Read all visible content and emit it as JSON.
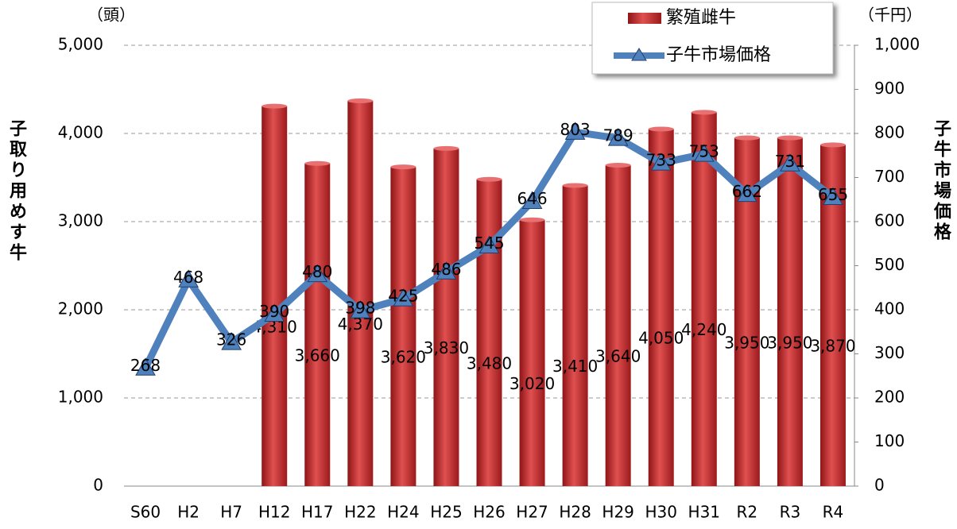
{
  "chart_data": {
    "type": "bar_line",
    "y_unit": "（頭）",
    "y2_unit": "（千円）",
    "ylabel": "子取り用めす牛",
    "y2label": "子牛市場価格",
    "categories": [
      "S60",
      "H2",
      "H7",
      "H12",
      "H17",
      "H22",
      "H24",
      "H25",
      "H26",
      "H27",
      "H28",
      "H29",
      "H30",
      "H31",
      "R2",
      "R3",
      "R4"
    ],
    "series": [
      {
        "name": "繁殖雌牛",
        "type": "bar",
        "color": "#c0282a",
        "values": [
          null,
          null,
          null,
          4310,
          3660,
          4370,
          3620,
          3830,
          3480,
          3020,
          3410,
          3640,
          4050,
          4240,
          3950,
          3950,
          3870
        ],
        "value_labels": [
          null,
          null,
          null,
          "4,310",
          "3,660",
          "4,370",
          "3,620",
          "3,830",
          "3,480",
          "3,020",
          "3,410",
          "3,640",
          "4,050",
          "4,240",
          "3,950",
          "3,950",
          "3,870"
        ]
      },
      {
        "name": "子牛市場価格",
        "type": "line",
        "axis": "y2",
        "color": "#4f81bd",
        "values": [
          268,
          468,
          326,
          390,
          480,
          398,
          425,
          486,
          545,
          646,
          803,
          789,
          733,
          753,
          662,
          731,
          655
        ]
      }
    ],
    "ylim": [
      0,
      5000
    ],
    "yticks": [
      0,
      {
        "value": 1000,
        "label": "1,000"
      },
      {
        "value": 2000,
        "label": "2,000"
      },
      {
        "value": 3000,
        "label": "3,000"
      },
      {
        "value": 4000,
        "label": "4,000"
      },
      {
        "value": 5000,
        "label": "5,000"
      }
    ],
    "y2lim": [
      0,
      1000
    ],
    "y2ticks": [
      0,
      100,
      200,
      300,
      400,
      500,
      600,
      700,
      800,
      900,
      {
        "value": 1000,
        "label": "1,000"
      }
    ],
    "grid": true,
    "legend": "top-right"
  }
}
